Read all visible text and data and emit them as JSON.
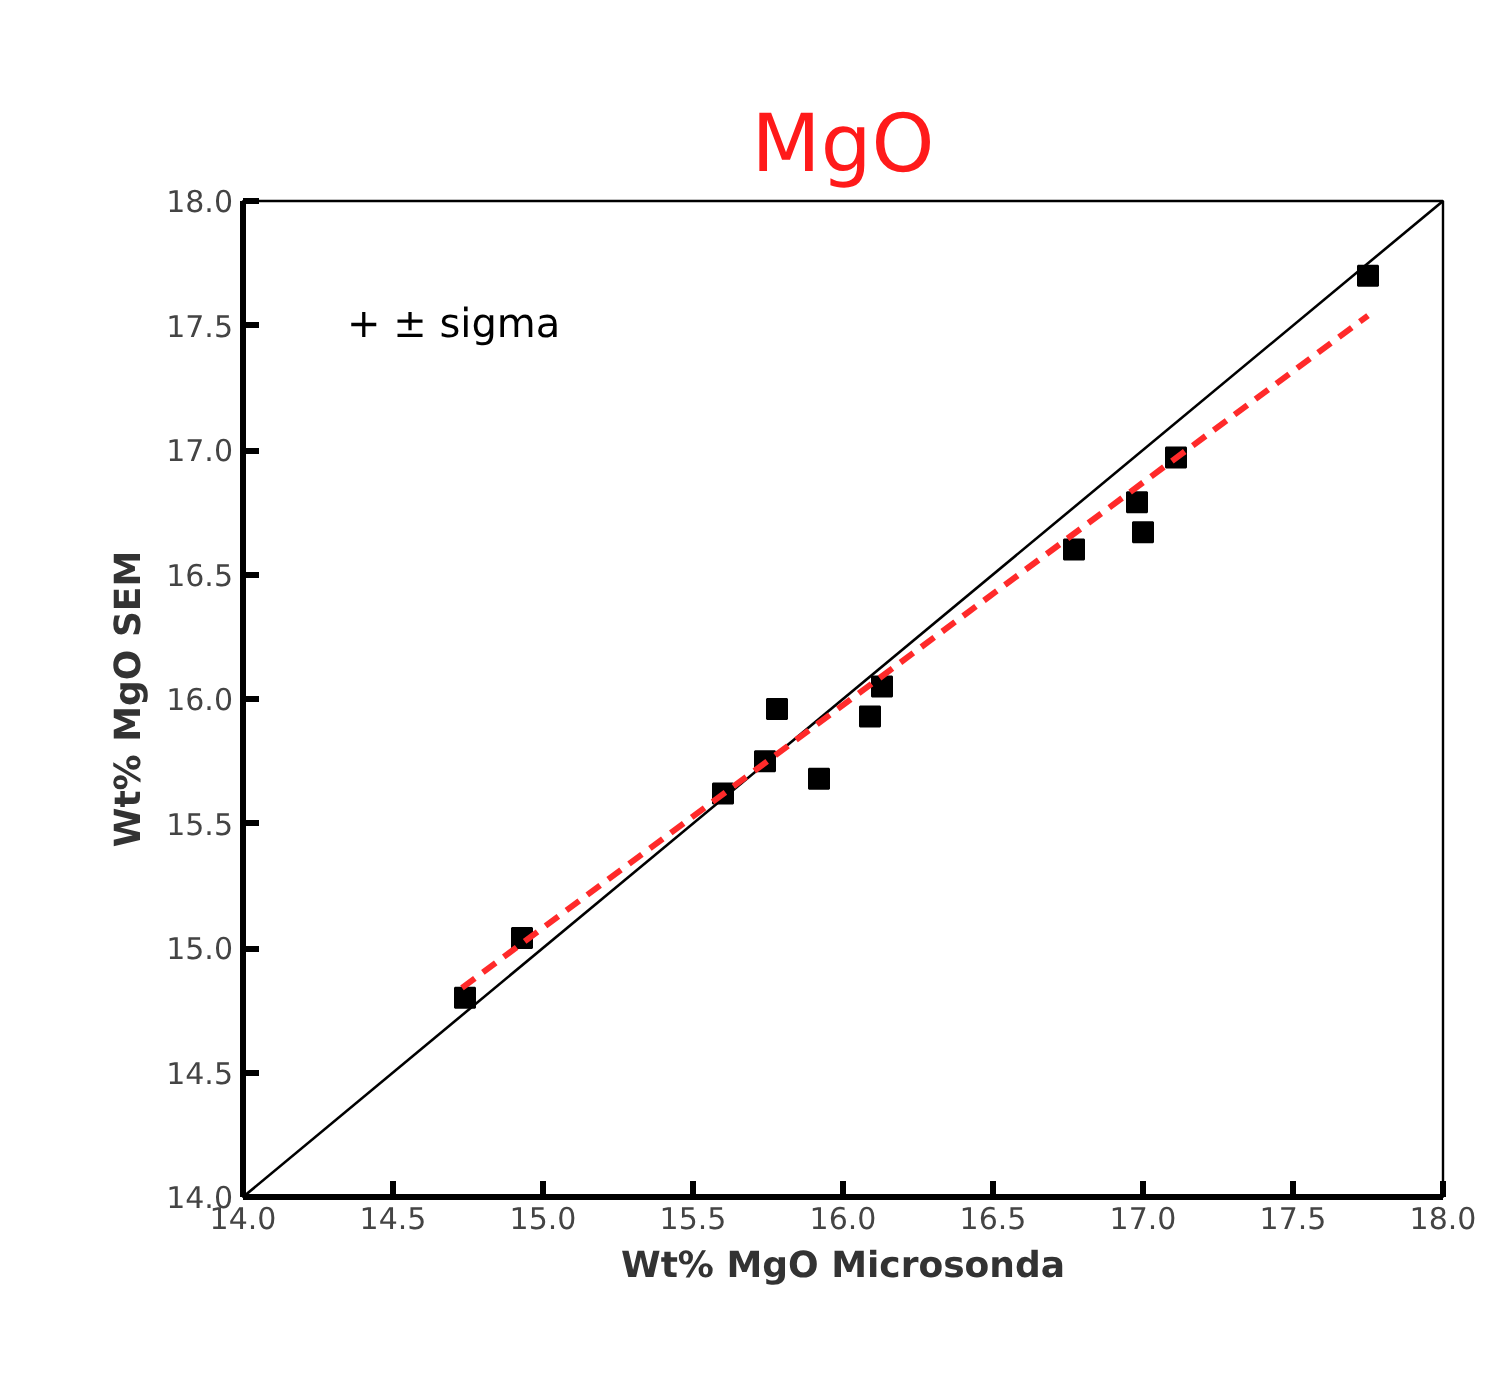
{
  "chart_data": {
    "type": "scatter",
    "title": "MgO",
    "xlabel": "Wt% MgO Microsonda",
    "ylabel": "Wt% MgO SEM",
    "xlim": [
      14.0,
      18.0
    ],
    "ylim": [
      14.0,
      18.0
    ],
    "xticks": [
      {
        "value": 14,
        "label": "14.0"
      },
      14.5,
      {
        "value": 15,
        "label": "15.0"
      },
      15.5,
      {
        "value": 16,
        "label": "16.0"
      },
      16.5,
      {
        "value": 17,
        "label": "17.0"
      },
      17.5,
      {
        "value": 18,
        "label": "18.0"
      }
    ],
    "yticks": [
      {
        "value": 14,
        "label": "14.0"
      },
      14.5,
      {
        "value": 15,
        "label": "15.0"
      },
      15.5,
      {
        "value": 16,
        "label": "16.0"
      },
      16.5,
      {
        "value": 17,
        "label": "17.0"
      },
      17.5,
      {
        "value": 18,
        "label": "18.0"
      }
    ],
    "grid": false,
    "annotations": [
      "+     ± sigma"
    ],
    "series": [
      {
        "marker": "square",
        "color": "#000000",
        "x": [
          14.74,
          14.93,
          15.6,
          15.74,
          15.78,
          15.92,
          16.09,
          16.13,
          16.77,
          16.98,
          17.0,
          17.11,
          17.75
        ],
        "values": [
          14.8,
          15.04,
          15.62,
          15.75,
          15.96,
          15.68,
          15.93,
          16.05,
          16.6,
          16.79,
          16.67,
          16.97,
          17.7
        ]
      },
      {
        "type": "line",
        "line_style": "solid",
        "color": "#000000",
        "x": [
          14.0,
          18.0
        ],
        "values": [
          14.0,
          18.0
        ]
      },
      {
        "type": "line",
        "line_style": "dashed",
        "color": "#ff2a2a",
        "x": [
          14.73,
          17.75
        ],
        "values": [
          14.84,
          17.54
        ]
      }
    ]
  }
}
